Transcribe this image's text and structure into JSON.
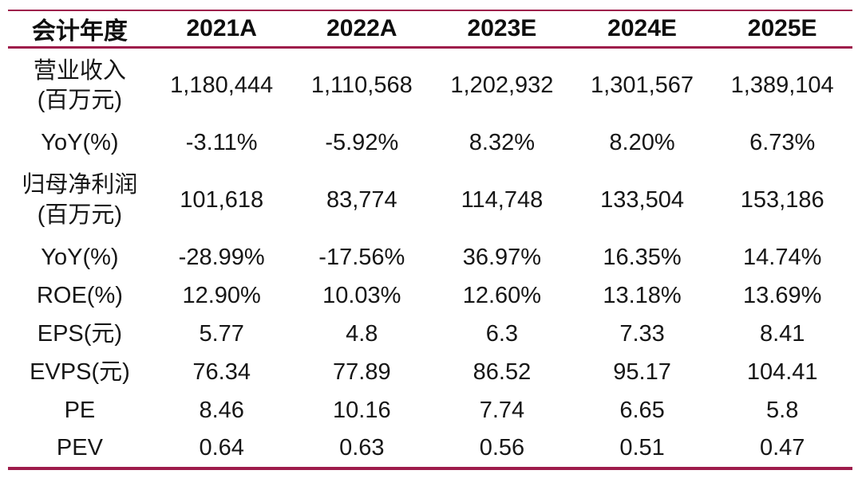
{
  "colors": {
    "accent": "#9E1C4B",
    "text": "#161616"
  },
  "table": {
    "header": {
      "label": "会计年度",
      "columns": [
        "2021A",
        "2022A",
        "2023E",
        "2024E",
        "2025E"
      ]
    },
    "rows": [
      {
        "label": "营业收入",
        "sublabel": "(百万元)",
        "values": [
          "1,180,444",
          "1,110,568",
          "1,202,932",
          "1,301,567",
          "1,389,104"
        ]
      },
      {
        "label": "YoY(%)",
        "values": [
          "-3.11%",
          "-5.92%",
          "8.32%",
          "8.20%",
          "6.73%"
        ]
      },
      {
        "label": "归母净利润",
        "sublabel": "(百万元)",
        "values": [
          "101,618",
          "83,774",
          "114,748",
          "133,504",
          "153,186"
        ]
      },
      {
        "label": "YoY(%)",
        "values": [
          "-28.99%",
          "-17.56%",
          "36.97%",
          "16.35%",
          "14.74%"
        ]
      },
      {
        "label": "ROE(%)",
        "values": [
          "12.90%",
          "10.03%",
          "12.60%",
          "13.18%",
          "13.69%"
        ]
      },
      {
        "label": "EPS(元)",
        "values": [
          "5.77",
          "4.8",
          "6.3",
          "7.33",
          "8.41"
        ]
      },
      {
        "label": "EVPS(元)",
        "values": [
          "76.34",
          "77.89",
          "86.52",
          "95.17",
          "104.41"
        ]
      },
      {
        "label": "PE",
        "values": [
          "8.46",
          "10.16",
          "7.74",
          "6.65",
          "5.8"
        ]
      },
      {
        "label": "PEV",
        "values": [
          "0.64",
          "0.63",
          "0.56",
          "0.51",
          "0.47"
        ]
      }
    ]
  },
  "chart_data": {
    "type": "table",
    "title": "",
    "columns": [
      "会计年度",
      "2021A",
      "2022A",
      "2023E",
      "2024E",
      "2025E"
    ],
    "rows": [
      [
        "营业收入(百万元)",
        "1,180,444",
        "1,110,568",
        "1,202,932",
        "1,301,567",
        "1,389,104"
      ],
      [
        "YoY(%)",
        "-3.11%",
        "-5.92%",
        "8.32%",
        "8.20%",
        "6.73%"
      ],
      [
        "归母净利润(百万元)",
        "101,618",
        "83,774",
        "114,748",
        "133,504",
        "153,186"
      ],
      [
        "YoY(%)",
        "-28.99%",
        "-17.56%",
        "36.97%",
        "16.35%",
        "14.74%"
      ],
      [
        "ROE(%)",
        "12.90%",
        "10.03%",
        "12.60%",
        "13.18%",
        "13.69%"
      ],
      [
        "EPS(元)",
        "5.77",
        "4.8",
        "6.3",
        "7.33",
        "8.41"
      ],
      [
        "EVPS(元)",
        "76.34",
        "77.89",
        "86.52",
        "95.17",
        "104.41"
      ],
      [
        "PE",
        "8.46",
        "10.16",
        "7.74",
        "6.65",
        "5.8"
      ],
      [
        "PEV",
        "0.64",
        "0.63",
        "0.56",
        "0.51",
        "0.47"
      ]
    ],
    "layout": {
      "grid": false,
      "rules": "horizontal accent lines top, below header, bottom",
      "align": "center"
    }
  }
}
